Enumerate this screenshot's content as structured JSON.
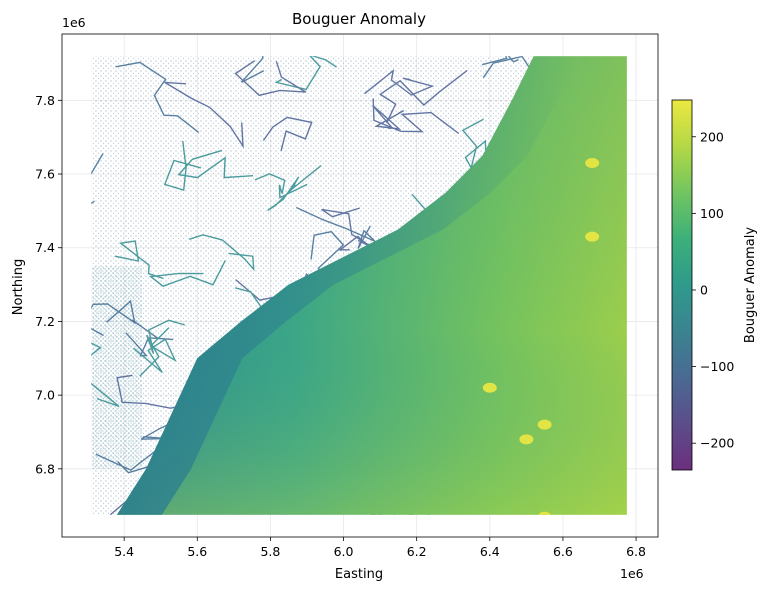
{
  "chart_data": {
    "type": "scatter",
    "title": "Bouguer Anomaly",
    "xlabel": "Easting",
    "ylabel": "Northing",
    "x_offset_label": "1e6",
    "y_offset_label": "1e6",
    "xlim": [
      5.23,
      6.86
    ],
    "ylim": [
      6.615,
      7.98
    ],
    "x_ticks": [
      5.4,
      5.6,
      5.8,
      6.0,
      6.2,
      6.4,
      6.6,
      6.8
    ],
    "x_tick_labels": [
      "5.4",
      "5.6",
      "5.8",
      "6.0",
      "6.2",
      "6.4",
      "6.6",
      "6.8"
    ],
    "y_ticks": [
      6.8,
      7.0,
      7.2,
      7.4,
      7.6,
      7.8
    ],
    "y_tick_labels": [
      "6.8",
      "7.0",
      "7.2",
      "7.4",
      "7.6",
      "7.8"
    ],
    "grid": true,
    "colormap": "viridis",
    "colorbar": {
      "label": "Bouguer Anomaly",
      "range": [
        -235,
        248
      ],
      "ticks": [
        -200,
        -100,
        0,
        100,
        200
      ],
      "tick_labels": [
        "−200",
        "−100",
        "0",
        "100",
        "200"
      ]
    },
    "data_extent": {
      "easting": [
        5.31,
        6.775
      ],
      "northing": [
        6.675,
        7.92
      ]
    },
    "coastline_northing_easting": [
      [
        6.675,
        5.38
      ],
      [
        6.8,
        5.46
      ],
      [
        6.95,
        5.53
      ],
      [
        7.1,
        5.6
      ],
      [
        7.2,
        5.72
      ],
      [
        7.3,
        5.85
      ],
      [
        7.4,
        6.05
      ],
      [
        7.45,
        6.15
      ],
      [
        7.55,
        6.28
      ],
      [
        7.65,
        6.38
      ],
      [
        7.8,
        6.46
      ],
      [
        7.92,
        6.52
      ]
    ],
    "hotspots": [
      {
        "easting": 6.4,
        "northing": 7.02,
        "value": 240
      },
      {
        "easting": 6.68,
        "northing": 7.43,
        "value": 240
      },
      {
        "easting": 6.68,
        "northing": 7.63,
        "value": 230
      },
      {
        "easting": 6.5,
        "northing": 6.88,
        "value": 200
      },
      {
        "easting": 6.55,
        "northing": 6.92,
        "value": 210
      },
      {
        "easting": 6.55,
        "northing": 6.67,
        "value": 230
      }
    ]
  }
}
